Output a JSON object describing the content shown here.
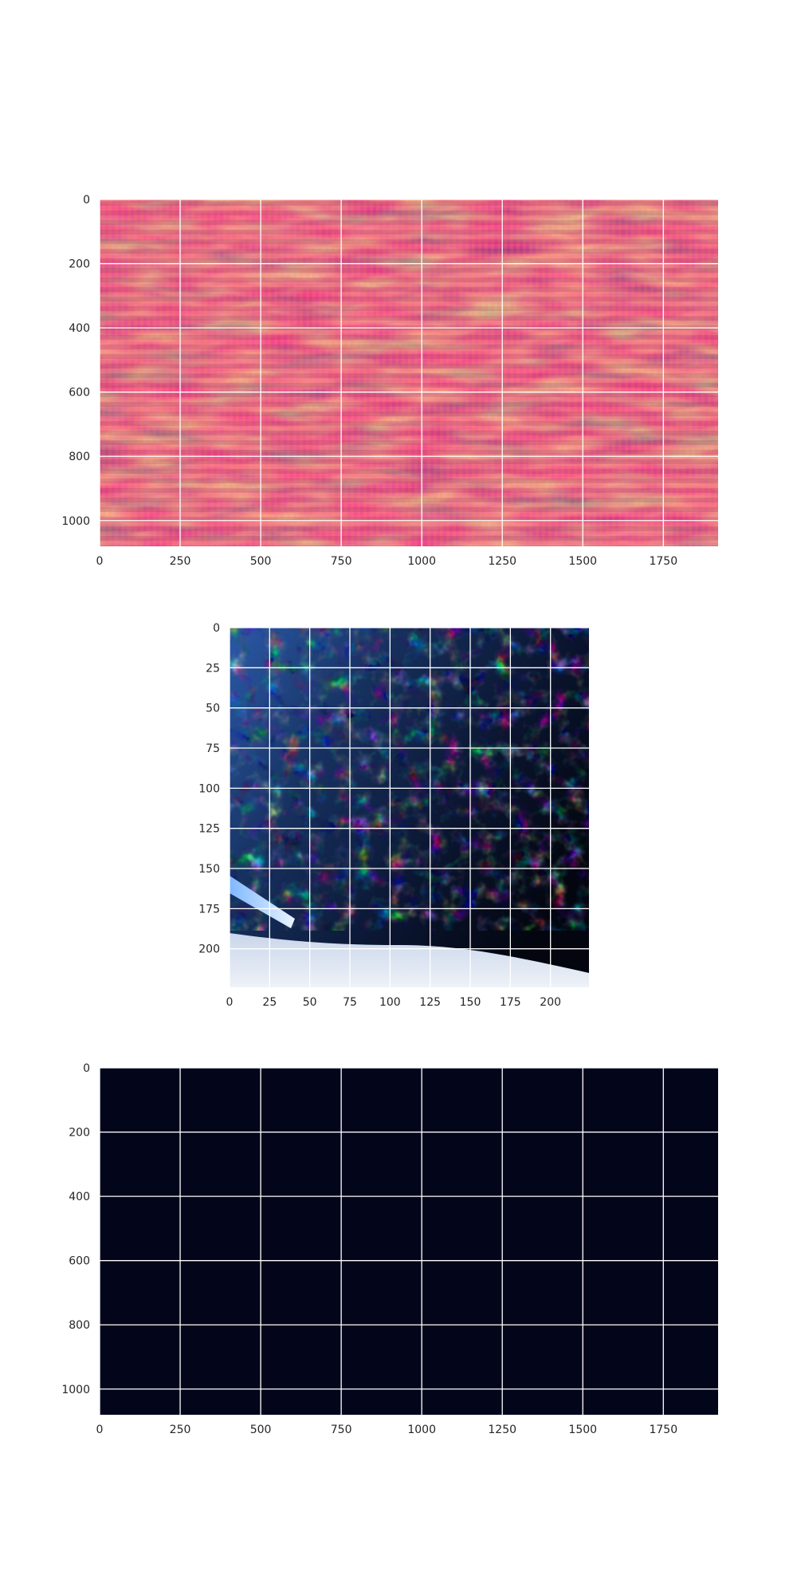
{
  "chart_data": [
    {
      "type": "heatmap",
      "title": "",
      "xlabel": "",
      "ylabel": "",
      "xlim": [
        0,
        1920
      ],
      "ylim": [
        1080,
        0
      ],
      "xticks": [
        0,
        250,
        500,
        750,
        1000,
        1250,
        1500,
        1750
      ],
      "yticks": [
        0,
        200,
        400,
        600,
        800,
        1000
      ],
      "grid": true,
      "colormap": "rocket",
      "grid_color": "#ffffff"
    },
    {
      "type": "heatmap",
      "title": "",
      "xlabel": "",
      "ylabel": "",
      "xlim": [
        0,
        224
      ],
      "ylim": [
        224,
        0
      ],
      "xticks": [
        0,
        25,
        50,
        75,
        100,
        125,
        150,
        175,
        200
      ],
      "yticks": [
        0,
        25,
        50,
        75,
        100,
        125,
        150,
        175,
        200
      ],
      "grid": true,
      "content": "underwater photograph",
      "grid_color": "#ffffff"
    },
    {
      "type": "heatmap",
      "title": "",
      "xlabel": "",
      "ylabel": "",
      "xlim": [
        0,
        1920
      ],
      "ylim": [
        1080,
        0
      ],
      "xticks": [
        0,
        250,
        500,
        750,
        1000,
        1250,
        1500,
        1750
      ],
      "yticks": [
        0,
        200,
        400,
        600,
        800,
        1000
      ],
      "grid": true,
      "fill_color": "#03051a",
      "grid_color": "#ffffff"
    }
  ]
}
